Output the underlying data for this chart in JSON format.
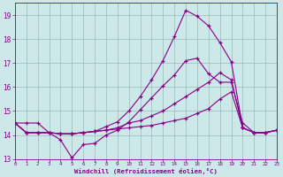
{
  "xlabel": "Windchill (Refroidissement éolien,°C)",
  "background_color": "#cce8e8",
  "line_color": "#880088",
  "grid_color": "#99bbbb",
  "xlim": [
    0,
    23
  ],
  "ylim": [
    13,
    19.5
  ],
  "xticks": [
    0,
    1,
    2,
    3,
    4,
    5,
    6,
    7,
    8,
    9,
    10,
    11,
    12,
    13,
    14,
    15,
    16,
    17,
    18,
    19,
    20,
    21,
    22,
    23
  ],
  "yticks": [
    13,
    14,
    15,
    16,
    17,
    18,
    19
  ],
  "lines": [
    {
      "y": [
        14.5,
        14.5,
        14.5,
        14.1,
        13.8,
        13.05,
        13.6,
        13.65,
        14.0,
        14.2,
        14.55,
        15.05,
        15.55,
        16.05,
        16.5,
        17.1,
        17.2,
        16.55,
        16.2,
        16.2,
        14.5,
        14.1,
        14.1,
        14.2
      ]
    },
    {
      "y": [
        14.5,
        14.1,
        14.1,
        14.1,
        14.05,
        14.05,
        14.1,
        14.15,
        14.2,
        14.25,
        14.3,
        14.35,
        14.4,
        14.5,
        14.6,
        14.7,
        14.9,
        15.1,
        15.5,
        15.8,
        14.3,
        14.1,
        14.1,
        14.2
      ]
    },
    {
      "y": [
        14.5,
        14.1,
        14.1,
        14.1,
        14.05,
        14.05,
        14.1,
        14.15,
        14.2,
        14.3,
        14.5,
        14.6,
        14.8,
        15.0,
        15.3,
        15.6,
        15.9,
        16.2,
        16.6,
        16.3,
        14.3,
        14.1,
        14.1,
        14.2
      ]
    },
    {
      "y": [
        14.5,
        14.1,
        14.1,
        14.1,
        14.05,
        14.05,
        14.1,
        14.15,
        14.35,
        14.55,
        15.0,
        15.6,
        16.3,
        17.1,
        18.1,
        19.2,
        18.95,
        18.55,
        17.85,
        17.05,
        14.3,
        14.1,
        14.1,
        14.2
      ]
    }
  ]
}
